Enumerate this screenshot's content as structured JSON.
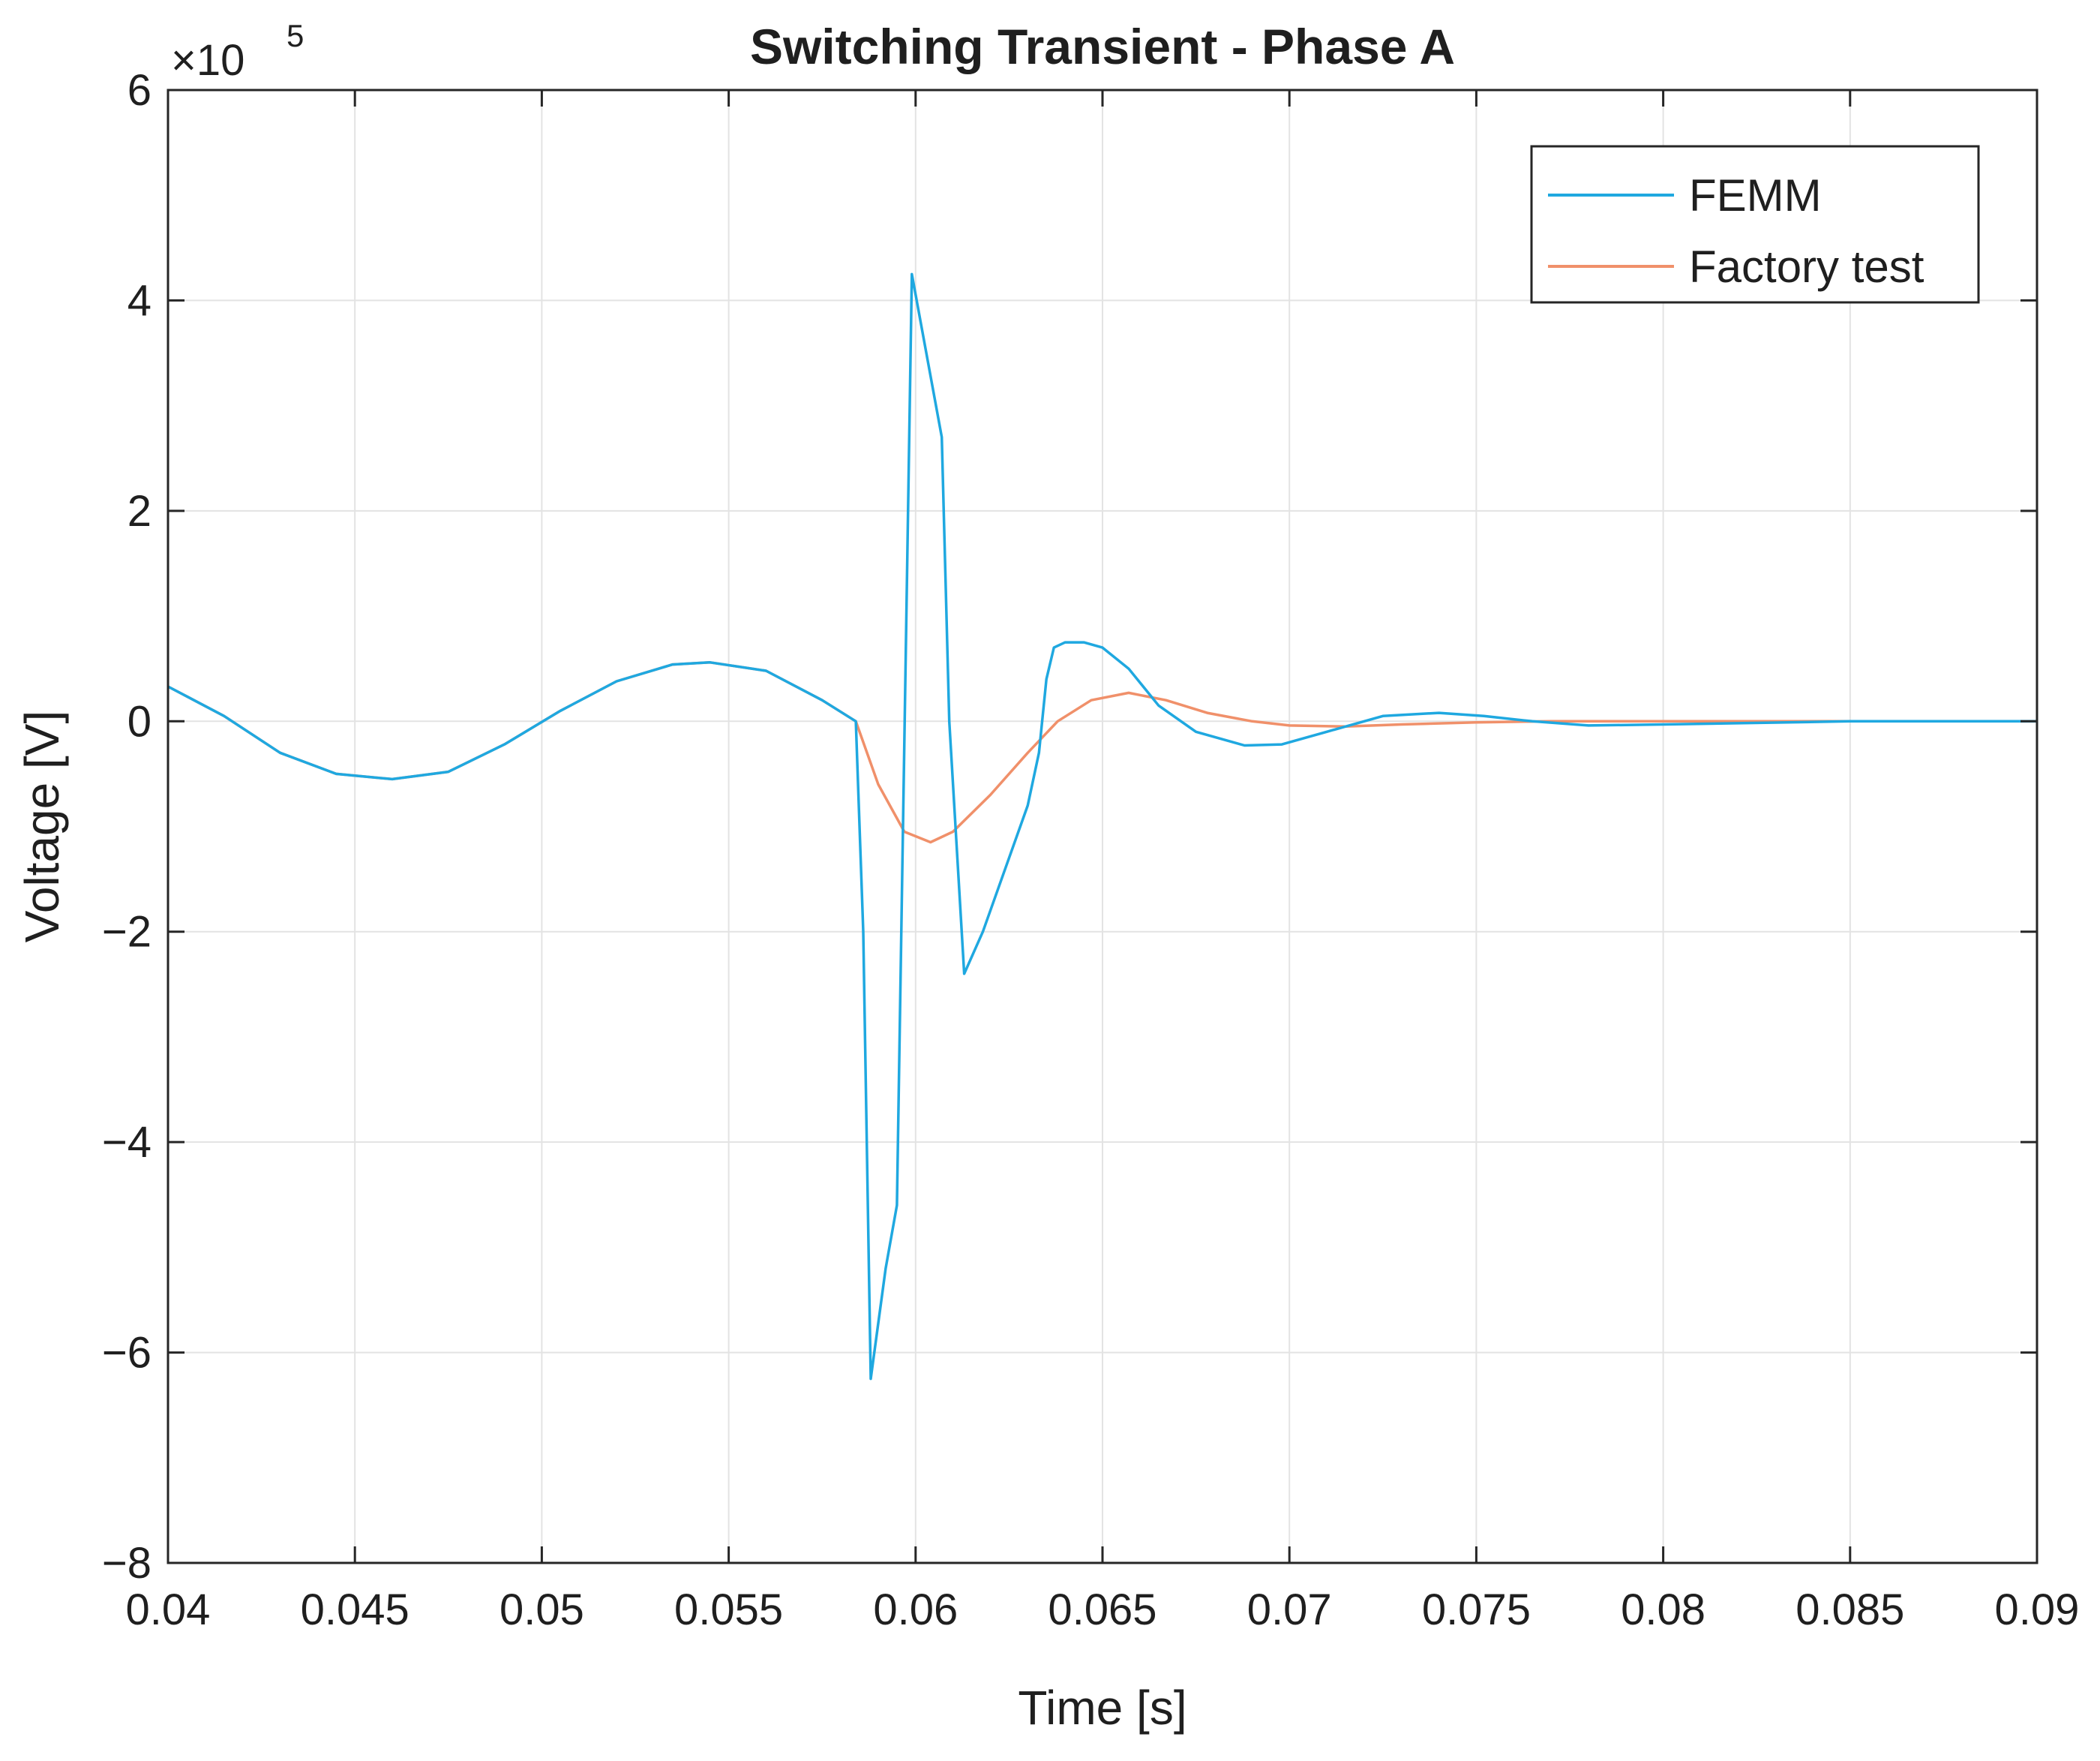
{
  "chart_data": {
    "type": "line",
    "title": "Switching Transient - Phase A",
    "xlabel": "Time [s]",
    "ylabel": "Voltage [V]",
    "xlim": [
      0.04,
      0.09
    ],
    "ylim": [
      -8,
      6
    ],
    "y_multiplier": "×10",
    "y_multiplier_exponent": "5",
    "x_ticks": [
      0.04,
      0.045,
      0.05,
      0.055,
      0.06,
      0.065,
      0.07,
      0.075,
      0.08,
      0.085,
      0.09
    ],
    "x_tick_labels": [
      "0.04",
      "0.045",
      "0.05",
      "0.055",
      "0.06",
      "0.065",
      "0.07",
      "0.075",
      "0.08",
      "0.085",
      "0.09"
    ],
    "y_ticks": [
      -8,
      -6,
      -4,
      -2,
      0,
      2,
      4,
      6
    ],
    "y_tick_labels": [
      "−8",
      "−6",
      "−4",
      "−2",
      "0",
      "2",
      "4",
      "6"
    ],
    "grid": true,
    "legend_position": "top-right",
    "series": [
      {
        "name": "FEMM",
        "color": "#1fa8e0",
        "x": [
          0.04,
          0.0415,
          0.043,
          0.0445,
          0.046,
          0.0475,
          0.049,
          0.0505,
          0.052,
          0.0535,
          0.0545,
          0.056,
          0.0575,
          0.0584,
          0.0586,
          0.0588,
          0.0592,
          0.0595,
          0.0599,
          0.0607,
          0.0609,
          0.0613,
          0.0618,
          0.0624,
          0.063,
          0.0633,
          0.0635,
          0.0637,
          0.064,
          0.0645,
          0.065,
          0.0657,
          0.0665,
          0.0675,
          0.0688,
          0.0698,
          0.071,
          0.0725,
          0.074,
          0.0752,
          0.0765,
          0.078,
          0.08,
          0.085,
          0.09
        ],
        "y": [
          0.33,
          0.05,
          -0.3,
          -0.5,
          -0.55,
          -0.48,
          -0.22,
          0.1,
          0.38,
          0.54,
          0.56,
          0.48,
          0.2,
          0.0,
          -2.0,
          -6.25,
          -5.2,
          -4.6,
          4.25,
          2.7,
          0.0,
          -2.4,
          -2.0,
          -1.4,
          -0.8,
          -0.3,
          0.4,
          0.7,
          0.75,
          0.75,
          0.7,
          0.5,
          0.15,
          -0.1,
          -0.23,
          -0.22,
          -0.1,
          0.05,
          0.08,
          0.05,
          0.0,
          -0.04,
          -0.03,
          0.0,
          0.0
        ]
      },
      {
        "name": "Factory test",
        "color": "#f0906a",
        "x": [
          0.04,
          0.0415,
          0.043,
          0.0445,
          0.046,
          0.0475,
          0.049,
          0.0505,
          0.052,
          0.0535,
          0.0545,
          0.056,
          0.0575,
          0.0584,
          0.059,
          0.0597,
          0.0604,
          0.061,
          0.062,
          0.063,
          0.0638,
          0.0647,
          0.0657,
          0.0667,
          0.0678,
          0.069,
          0.07,
          0.0715,
          0.073,
          0.075,
          0.077,
          0.08,
          0.085,
          0.09
        ],
        "y": [
          0.33,
          0.05,
          -0.3,
          -0.5,
          -0.55,
          -0.48,
          -0.22,
          0.1,
          0.38,
          0.54,
          0.56,
          0.48,
          0.2,
          0.0,
          -0.6,
          -1.05,
          -1.15,
          -1.05,
          -0.7,
          -0.3,
          0.0,
          0.2,
          0.27,
          0.2,
          0.08,
          0.0,
          -0.04,
          -0.05,
          -0.03,
          -0.01,
          0.0,
          0.0,
          0.0,
          0.0
        ]
      }
    ]
  }
}
